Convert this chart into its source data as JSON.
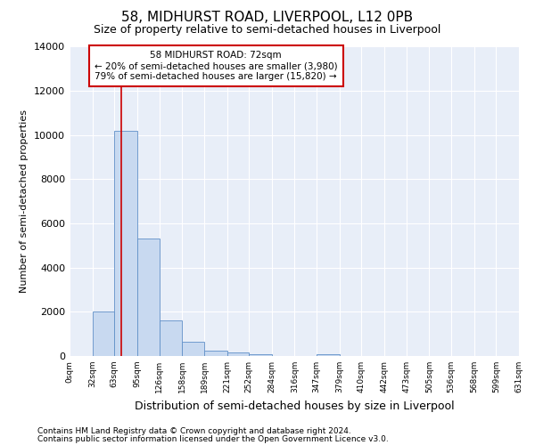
{
  "title": "58, MIDHURST ROAD, LIVERPOOL, L12 0PB",
  "subtitle": "Size of property relative to semi-detached houses in Liverpool",
  "xlabel": "Distribution of semi-detached houses by size in Liverpool",
  "ylabel": "Number of semi-detached properties",
  "footnote1": "Contains HM Land Registry data © Crown copyright and database right 2024.",
  "footnote2": "Contains public sector information licensed under the Open Government Licence v3.0.",
  "property_size": 72,
  "property_label": "58 MIDHURST ROAD: 72sqm",
  "smaller_pct": 20,
  "smaller_count": 3980,
  "larger_pct": 79,
  "larger_count": 15820,
  "bin_edges": [
    0,
    32,
    63,
    95,
    126,
    158,
    189,
    221,
    252,
    284,
    316,
    347,
    379,
    410,
    442,
    473,
    505,
    536,
    568,
    599,
    631
  ],
  "bin_labels": [
    "0sqm",
    "32sqm",
    "63sqm",
    "95sqm",
    "126sqm",
    "158sqm",
    "189sqm",
    "221sqm",
    "252sqm",
    "284sqm",
    "316sqm",
    "347sqm",
    "379sqm",
    "410sqm",
    "442sqm",
    "473sqm",
    "505sqm",
    "536sqm",
    "568sqm",
    "599sqm",
    "631sqm"
  ],
  "counts": [
    0,
    2000,
    10200,
    5300,
    1600,
    650,
    250,
    150,
    100,
    0,
    0,
    100,
    0,
    0,
    0,
    0,
    0,
    0,
    0,
    0
  ],
  "bar_color": "#c8d9f0",
  "bar_edge_color": "#6090c8",
  "bg_color": "#e8eef8",
  "grid_color": "#ffffff",
  "annotation_box_edge": "#cc0000",
  "redline_color": "#cc0000",
  "ylim": [
    0,
    14000
  ],
  "yticks": [
    0,
    2000,
    4000,
    6000,
    8000,
    10000,
    12000,
    14000
  ],
  "title_fontsize": 11,
  "subtitle_fontsize": 9,
  "ylabel_fontsize": 8,
  "xlabel_fontsize": 9
}
